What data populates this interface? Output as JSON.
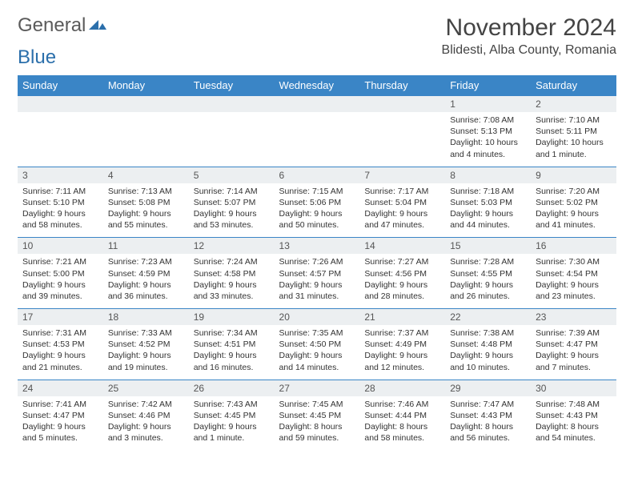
{
  "logo": {
    "general": "General",
    "blue": "Blue"
  },
  "title": "November 2024",
  "location": "Blidesti, Alba County, Romania",
  "colors": {
    "header_bg": "#3a85c6",
    "header_text": "#ffffff",
    "daynum_bg": "#eceff1",
    "border": "#3a85c6",
    "logo_blue": "#2b6fab",
    "logo_gray": "#5a5a5a"
  },
  "day_headers": [
    "Sunday",
    "Monday",
    "Tuesday",
    "Wednesday",
    "Thursday",
    "Friday",
    "Saturday"
  ],
  "weeks": [
    [
      {
        "blank": true
      },
      {
        "blank": true
      },
      {
        "blank": true
      },
      {
        "blank": true
      },
      {
        "blank": true
      },
      {
        "num": "1",
        "sunrise": "Sunrise: 7:08 AM",
        "sunset": "Sunset: 5:13 PM",
        "daylight": "Daylight: 10 hours and 4 minutes."
      },
      {
        "num": "2",
        "sunrise": "Sunrise: 7:10 AM",
        "sunset": "Sunset: 5:11 PM",
        "daylight": "Daylight: 10 hours and 1 minute."
      }
    ],
    [
      {
        "num": "3",
        "sunrise": "Sunrise: 7:11 AM",
        "sunset": "Sunset: 5:10 PM",
        "daylight": "Daylight: 9 hours and 58 minutes."
      },
      {
        "num": "4",
        "sunrise": "Sunrise: 7:13 AM",
        "sunset": "Sunset: 5:08 PM",
        "daylight": "Daylight: 9 hours and 55 minutes."
      },
      {
        "num": "5",
        "sunrise": "Sunrise: 7:14 AM",
        "sunset": "Sunset: 5:07 PM",
        "daylight": "Daylight: 9 hours and 53 minutes."
      },
      {
        "num": "6",
        "sunrise": "Sunrise: 7:15 AM",
        "sunset": "Sunset: 5:06 PM",
        "daylight": "Daylight: 9 hours and 50 minutes."
      },
      {
        "num": "7",
        "sunrise": "Sunrise: 7:17 AM",
        "sunset": "Sunset: 5:04 PM",
        "daylight": "Daylight: 9 hours and 47 minutes."
      },
      {
        "num": "8",
        "sunrise": "Sunrise: 7:18 AM",
        "sunset": "Sunset: 5:03 PM",
        "daylight": "Daylight: 9 hours and 44 minutes."
      },
      {
        "num": "9",
        "sunrise": "Sunrise: 7:20 AM",
        "sunset": "Sunset: 5:02 PM",
        "daylight": "Daylight: 9 hours and 41 minutes."
      }
    ],
    [
      {
        "num": "10",
        "sunrise": "Sunrise: 7:21 AM",
        "sunset": "Sunset: 5:00 PM",
        "daylight": "Daylight: 9 hours and 39 minutes."
      },
      {
        "num": "11",
        "sunrise": "Sunrise: 7:23 AM",
        "sunset": "Sunset: 4:59 PM",
        "daylight": "Daylight: 9 hours and 36 minutes."
      },
      {
        "num": "12",
        "sunrise": "Sunrise: 7:24 AM",
        "sunset": "Sunset: 4:58 PM",
        "daylight": "Daylight: 9 hours and 33 minutes."
      },
      {
        "num": "13",
        "sunrise": "Sunrise: 7:26 AM",
        "sunset": "Sunset: 4:57 PM",
        "daylight": "Daylight: 9 hours and 31 minutes."
      },
      {
        "num": "14",
        "sunrise": "Sunrise: 7:27 AM",
        "sunset": "Sunset: 4:56 PM",
        "daylight": "Daylight: 9 hours and 28 minutes."
      },
      {
        "num": "15",
        "sunrise": "Sunrise: 7:28 AM",
        "sunset": "Sunset: 4:55 PM",
        "daylight": "Daylight: 9 hours and 26 minutes."
      },
      {
        "num": "16",
        "sunrise": "Sunrise: 7:30 AM",
        "sunset": "Sunset: 4:54 PM",
        "daylight": "Daylight: 9 hours and 23 minutes."
      }
    ],
    [
      {
        "num": "17",
        "sunrise": "Sunrise: 7:31 AM",
        "sunset": "Sunset: 4:53 PM",
        "daylight": "Daylight: 9 hours and 21 minutes."
      },
      {
        "num": "18",
        "sunrise": "Sunrise: 7:33 AM",
        "sunset": "Sunset: 4:52 PM",
        "daylight": "Daylight: 9 hours and 19 minutes."
      },
      {
        "num": "19",
        "sunrise": "Sunrise: 7:34 AM",
        "sunset": "Sunset: 4:51 PM",
        "daylight": "Daylight: 9 hours and 16 minutes."
      },
      {
        "num": "20",
        "sunrise": "Sunrise: 7:35 AM",
        "sunset": "Sunset: 4:50 PM",
        "daylight": "Daylight: 9 hours and 14 minutes."
      },
      {
        "num": "21",
        "sunrise": "Sunrise: 7:37 AM",
        "sunset": "Sunset: 4:49 PM",
        "daylight": "Daylight: 9 hours and 12 minutes."
      },
      {
        "num": "22",
        "sunrise": "Sunrise: 7:38 AM",
        "sunset": "Sunset: 4:48 PM",
        "daylight": "Daylight: 9 hours and 10 minutes."
      },
      {
        "num": "23",
        "sunrise": "Sunrise: 7:39 AM",
        "sunset": "Sunset: 4:47 PM",
        "daylight": "Daylight: 9 hours and 7 minutes."
      }
    ],
    [
      {
        "num": "24",
        "sunrise": "Sunrise: 7:41 AM",
        "sunset": "Sunset: 4:47 PM",
        "daylight": "Daylight: 9 hours and 5 minutes."
      },
      {
        "num": "25",
        "sunrise": "Sunrise: 7:42 AM",
        "sunset": "Sunset: 4:46 PM",
        "daylight": "Daylight: 9 hours and 3 minutes."
      },
      {
        "num": "26",
        "sunrise": "Sunrise: 7:43 AM",
        "sunset": "Sunset: 4:45 PM",
        "daylight": "Daylight: 9 hours and 1 minute."
      },
      {
        "num": "27",
        "sunrise": "Sunrise: 7:45 AM",
        "sunset": "Sunset: 4:45 PM",
        "daylight": "Daylight: 8 hours and 59 minutes."
      },
      {
        "num": "28",
        "sunrise": "Sunrise: 7:46 AM",
        "sunset": "Sunset: 4:44 PM",
        "daylight": "Daylight: 8 hours and 58 minutes."
      },
      {
        "num": "29",
        "sunrise": "Sunrise: 7:47 AM",
        "sunset": "Sunset: 4:43 PM",
        "daylight": "Daylight: 8 hours and 56 minutes."
      },
      {
        "num": "30",
        "sunrise": "Sunrise: 7:48 AM",
        "sunset": "Sunset: 4:43 PM",
        "daylight": "Daylight: 8 hours and 54 minutes."
      }
    ]
  ]
}
